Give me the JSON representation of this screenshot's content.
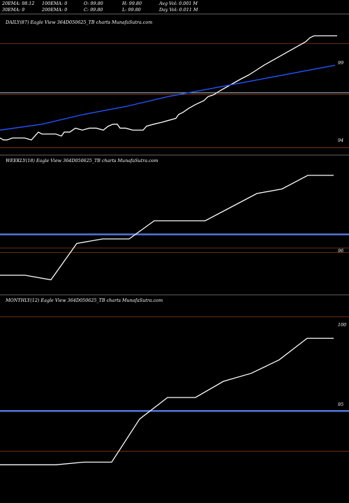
{
  "header": {
    "ema20": "20EMA: 98.12",
    "ema100": "100EMA: 0",
    "open": "O: 99.80",
    "high": "H: 99.80",
    "avgvol": "Avg Vol: 0.001 M",
    "ema30": "30EMA: 9",
    "ema200": "200EMA: 0",
    "close": "C: 99.80",
    "low": "L: 99.80",
    "dayvol": "Day Vol: 0.011 M"
  },
  "colors": {
    "background": "#000000",
    "price_line": "#ffffff",
    "ema_line": "#2255ff",
    "band_line": "#5577dd",
    "level_line": "#8b3a1a",
    "separator": "#cccccc"
  },
  "panels": [
    {
      "id": "daily",
      "title": "DAILY(87) Eagle  View  364D050625_TB charts MunafaSutra.com"
    },
    {
      "id": "weekly",
      "title": "WEEKLY(18) Eagle  View  364D050625_TB charts MunafaSutra.com"
    },
    {
      "id": "monthly",
      "title": "MONTHLY(12) Eagle  View  364D050625_TB charts MunafaSutra.com"
    }
  ],
  "chart_data": [
    {
      "type": "line",
      "title": "DAILY(87) Eagle  View  364D050625_TB charts MunafaSutra.com",
      "y_tick_labels": [
        "99",
        "94"
      ],
      "series": [
        {
          "name": "",
          "role": "price",
          "x": [
            0,
            5,
            10,
            18,
            26,
            35,
            45,
            50,
            55,
            60,
            65,
            72,
            80,
            88,
            92,
            100,
            108,
            118,
            128,
            138,
            148,
            155,
            162,
            168,
            172,
            180,
            190,
            200,
            205,
            210,
            220,
            232,
            242,
            252,
            256,
            262,
            270,
            280,
            292,
            298,
            306,
            315,
            325,
            335,
            345,
            356,
            365,
            378,
            388,
            398,
            408,
            418,
            428,
            438,
            444,
            450,
            458,
            468,
            478,
            483
          ],
          "y": [
            94.6,
            94.5,
            94.5,
            94.6,
            94.6,
            94.6,
            94.5,
            94.7,
            94.9,
            94.8,
            94.8,
            94.8,
            94.8,
            94.7,
            94.9,
            94.9,
            95.1,
            95.0,
            95.1,
            95.1,
            95.0,
            95.2,
            95.3,
            95.3,
            95.1,
            95.1,
            95.0,
            95.0,
            95.0,
            95.2,
            95.3,
            95.4,
            95.5,
            95.6,
            95.8,
            95.9,
            96.1,
            96.3,
            96.5,
            96.7,
            96.8,
            97.0,
            97.2,
            97.4,
            97.6,
            97.8,
            98.0,
            98.3,
            98.5,
            98.7,
            98.9,
            99.1,
            99.3,
            99.5,
            99.7,
            99.8,
            99.8,
            99.8,
            99.8,
            99.8
          ]
        },
        {
          "name": "",
          "role": "ema",
          "x": [
            0,
            60,
            120,
            180,
            240,
            300,
            360,
            420,
            480
          ],
          "y": [
            95.0,
            95.3,
            95.8,
            96.2,
            96.7,
            97.1,
            97.5,
            97.9,
            98.3
          ]
        }
      ],
      "reference_lines": [
        96.9,
        94.1
      ]
    },
    {
      "type": "line",
      "title": "WEEKLY(18) Eagle  View  364D050625_TB charts MunafaSutra.com",
      "y_tick_labels": [
        "96"
      ],
      "series": [
        {
          "name": "",
          "role": "price",
          "x": [
            0,
            36,
            73,
            110,
            147,
            185,
            221,
            258,
            294,
            331,
            368,
            404,
            441,
            478
          ],
          "y": [
            95.4,
            95.4,
            95.3,
            96.1,
            96.2,
            96.2,
            96.6,
            96.6,
            96.6,
            96.9,
            97.2,
            97.3,
            97.6,
            97.6
          ]
        }
      ],
      "reference_lines": [
        96.3,
        96.0
      ]
    },
    {
      "type": "line",
      "title": "MONTHLY(12) Eagle  View  364D050625_TB charts MunafaSutra.com",
      "y_tick_labels": [
        "100",
        "95"
      ],
      "series": [
        {
          "name": "",
          "role": "price",
          "x": [
            0,
            40,
            80,
            120,
            160,
            200,
            240,
            280,
            320,
            360,
            400,
            440,
            478
          ],
          "y": [
            94.5,
            94.5,
            94.5,
            94.6,
            94.6,
            96.2,
            97.0,
            97.0,
            97.6,
            97.9,
            98.4,
            99.2,
            99.2
          ]
        }
      ],
      "reference_lines": [
        100.0,
        96.5,
        95.0
      ]
    }
  ]
}
